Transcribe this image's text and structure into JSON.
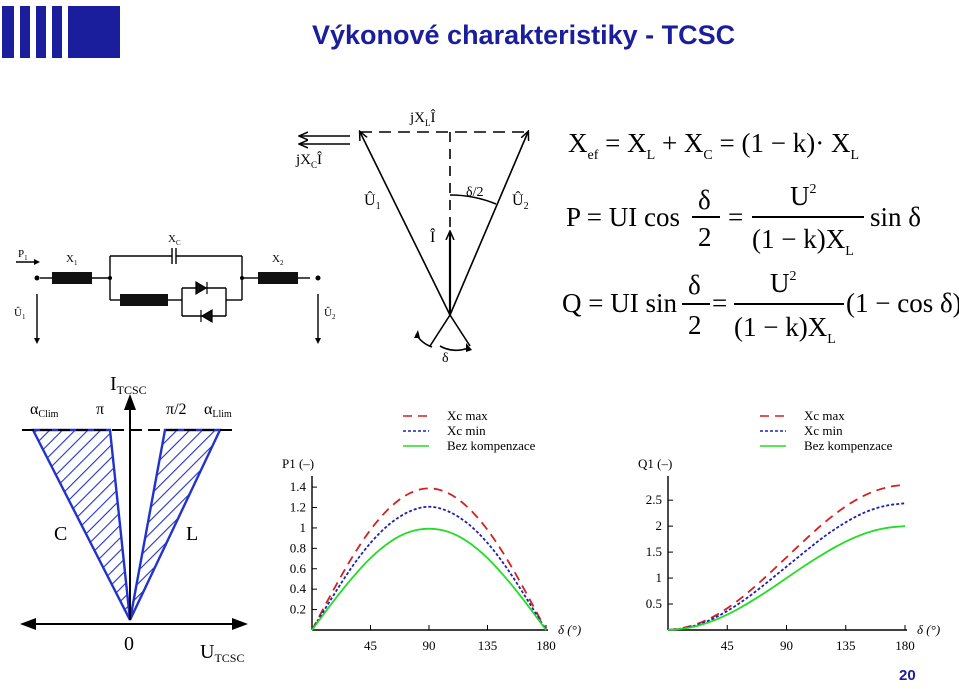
{
  "title": "Výkonové charakteristiky - TCSC",
  "page_number": "20",
  "colors": {
    "title": "#1a1e9c",
    "hatch": "#2233cc",
    "xc_max": "#d42020",
    "xc_min": "#2020b0",
    "bez": "#22dd22"
  },
  "equations": {
    "xef": {
      "lhs": "X",
      "lhs_sub": "ef",
      "rhs1": "= X",
      "rhs1_sub": "L",
      "rhs2": "+ X",
      "rhs2_sub": "C",
      "rhs3": "= (1 − k)· X",
      "rhs3_sub": "L"
    },
    "p": {
      "lhs": "P = UI cos",
      "num_delta": "δ",
      "den_2": "2",
      "eq": "=",
      "num_U": "U",
      "sup2": "2",
      "den": "(1 − k)X",
      "den_sub": "L",
      "tail": "sin δ"
    },
    "q": {
      "lhs": "Q = UI sin",
      "num_delta": "δ",
      "den_2": "2",
      "eq": "=",
      "num_U": "U",
      "sup2": "2",
      "den": "(1 − k)X",
      "den_sub": "L",
      "tail": "(1 − cos δ)"
    }
  },
  "circuit": {
    "p1": "P",
    "p1_sub": "1",
    "x1": "X",
    "x1_sub": "1",
    "xc": "X",
    "xc_sub": "C",
    "x2": "X",
    "x2_sub": "2",
    "u1": "Û",
    "u1_sub": "1",
    "u2": "Û",
    "u2_sub": "2"
  },
  "phasor": {
    "jxli": "jX",
    "jxli_sub": "L",
    "jxli_tail": "Î",
    "jxci": "jX",
    "jxci_sub": "C",
    "jxci_tail": "Î",
    "u1": "Û",
    "u1_sub": "1",
    "u2": "Û",
    "u2_sub": "2",
    "i": "Î",
    "half_delta": "δ/2",
    "delta": "δ"
  },
  "operating_range": {
    "axis_y": "I",
    "axis_y_sub": "TCSC",
    "axis_x": "U",
    "axis_x_sub": "TCSC",
    "origin": "0",
    "alpha_clim": "α",
    "alpha_clim_sub": "Clim",
    "pi": "π",
    "pi_half": "π/2",
    "alpha_llim": "α",
    "alpha_llim_sub": "Llim",
    "label_c": "C",
    "label_l": "L"
  },
  "legend": [
    "Xc max",
    "Xc min",
    "Bez kompenzace"
  ],
  "chart_data": [
    {
      "type": "line",
      "ylabel": "P1 (–)",
      "xlabel": "δ (°)",
      "xlim": [
        0,
        180
      ],
      "ylim": [
        0,
        1.45
      ],
      "xticks": [
        45,
        90,
        135,
        180
      ],
      "yticks": [
        0.2,
        0.4,
        0.6,
        0.8,
        1,
        1.2,
        1.4
      ],
      "ytick_labels": [
        "0.2",
        "0.4",
        "0.6",
        "0.8",
        "1",
        "1.2",
        "1.4"
      ],
      "x": [
        0,
        15,
        30,
        45,
        60,
        75,
        90,
        105,
        120,
        135,
        150,
        165,
        180
      ],
      "series": [
        {
          "name": "Xc max",
          "style": "dashed",
          "values": [
            0,
            0.36,
            0.7,
            0.99,
            1.21,
            1.35,
            1.4,
            1.35,
            1.21,
            0.99,
            0.7,
            0.36,
            0
          ]
        },
        {
          "name": "Xc min",
          "style": "dotted",
          "values": [
            0,
            0.31,
            0.61,
            0.86,
            1.05,
            1.17,
            1.22,
            1.17,
            1.05,
            0.86,
            0.61,
            0.31,
            0
          ]
        },
        {
          "name": "Bez kompenzace",
          "style": "solid",
          "values": [
            0,
            0.26,
            0.5,
            0.71,
            0.87,
            0.97,
            1.0,
            0.97,
            0.87,
            0.71,
            0.5,
            0.26,
            0
          ]
        }
      ]
    },
    {
      "type": "line",
      "ylabel": "Q1 (–)",
      "xlabel": "δ (°)",
      "xlim": [
        0,
        180
      ],
      "ylim": [
        0,
        2.85
      ],
      "xticks": [
        45,
        90,
        135,
        180
      ],
      "yticks": [
        0.5,
        1,
        1.5,
        2,
        2.5
      ],
      "ytick_labels": [
        "0.5",
        "1",
        "1.5",
        "2",
        "2.5"
      ],
      "x": [
        0,
        15,
        30,
        45,
        60,
        75,
        90,
        105,
        120,
        135,
        150,
        165,
        180
      ],
      "series": [
        {
          "name": "Xc max",
          "style": "dashed",
          "values": [
            0,
            0.05,
            0.19,
            0.41,
            0.7,
            1.04,
            1.4,
            1.76,
            2.1,
            2.39,
            2.61,
            2.75,
            2.8
          ]
        },
        {
          "name": "Xc min",
          "style": "dotted",
          "values": [
            0,
            0.04,
            0.16,
            0.36,
            0.61,
            0.91,
            1.22,
            1.53,
            1.83,
            2.08,
            2.28,
            2.4,
            2.44
          ]
        },
        {
          "name": "Bez kompenzace",
          "style": "solid",
          "values": [
            0,
            0.03,
            0.13,
            0.29,
            0.5,
            0.74,
            1.0,
            1.26,
            1.5,
            1.71,
            1.87,
            1.97,
            2.0
          ]
        }
      ]
    }
  ]
}
